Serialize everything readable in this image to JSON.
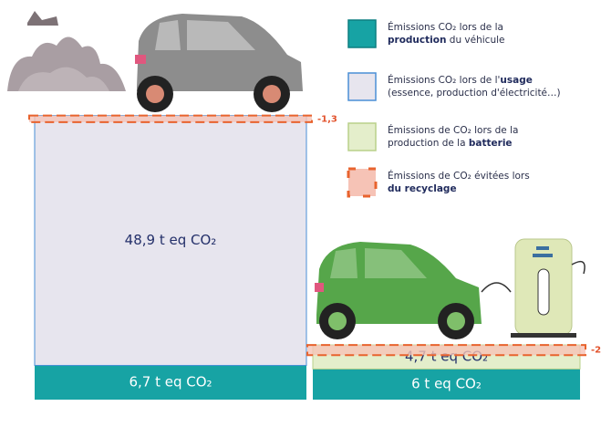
{
  "chart_data": {
    "type": "stacked-bar",
    "categories": [
      null,
      null
    ],
    "series": [
      {
        "name": "Émissions CO₂ lors de la\nproduction du véhicule",
        "emphasis": "production",
        "color": "#17a3a4",
        "values": [
          6.7,
          6
        ],
        "value_labels": [
          "6,7 t eq CO₂",
          "6 t eq CO₂"
        ]
      },
      {
        "name": "Émissions CO₂ lors de l'usage\n(essence, production d'électricité…)",
        "emphasis": "usage",
        "color": "#e7e5ee",
        "values": [
          48.9,
          null
        ],
        "value_labels": [
          "48,9 t eq CO₂",
          null
        ]
      },
      {
        "name": "Émissions de CO₂ lors de la\nproduction de la batterie",
        "emphasis": "batterie",
        "color": "#e4eecb",
        "values": [
          null,
          4.7
        ],
        "value_labels": [
          null,
          "4,7 t eq CO₂"
        ]
      },
      {
        "name": "Émissions de CO₂ évitées lors\ndu recyclage",
        "emphasis": "du recyclage",
        "color": "#f6c3b6",
        "values": [
          -1.3,
          -2
        ],
        "value_labels": [
          "-1,3",
          "-2"
        ]
      }
    ]
  }
}
